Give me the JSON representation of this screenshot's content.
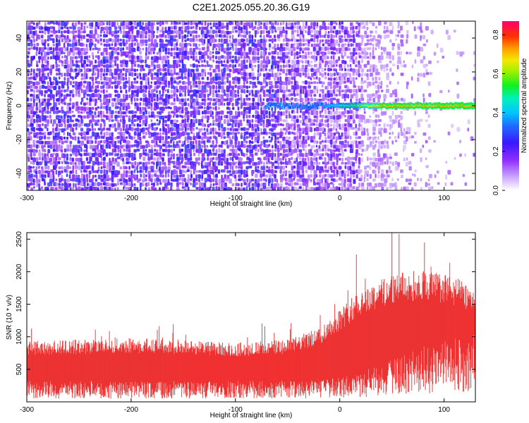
{
  "title": "C2E1.2025.055.20.36.G19",
  "chart_data": [
    {
      "type": "heatmap",
      "xlabel": "Height of straight line (km)",
      "ylabel": "Frequency (Hz)",
      "xlim": [
        -300,
        130
      ],
      "ylim": [
        -50,
        50
      ],
      "xticks": [
        -300,
        -200,
        -100,
        0,
        100
      ],
      "yticks": [
        -40,
        -20,
        0,
        20,
        40
      ],
      "colorbar": {
        "label": "Normalized spectral amplitude",
        "range": [
          0,
          0.87
        ],
        "ticks": [
          0.0,
          0.2,
          0.4,
          0.6,
          0.8
        ],
        "colormap": "purple-blue-cyan-green-yellow-red"
      },
      "features": {
        "noise_dense_until_km": -10,
        "noise_fades_out_by_km": 90,
        "signal_line_frequency_hz": 0,
        "signal_line_start_km": -72,
        "signal_line_peak_amplitude": 0.85
      }
    },
    {
      "type": "line",
      "xlabel": "Height of straight line (km)",
      "ylabel": "SNR (10 * v/v)",
      "xlim": [
        -300,
        130
      ],
      "ylim": [
        0,
        2600
      ],
      "xticks": [
        -300,
        -200,
        -100,
        0,
        100
      ],
      "yticks": [
        500,
        1000,
        1500,
        2000,
        2500
      ],
      "grid": false,
      "series": [
        {
          "color": "#ee2e2e",
          "envelope_x": [
            -300,
            -250,
            -200,
            -150,
            -100,
            -50,
            -20,
            0,
            20,
            50,
            80,
            100,
            130
          ],
          "upper_mean": [
            780,
            800,
            820,
            800,
            760,
            800,
            950,
            1200,
            1450,
            1650,
            1700,
            1650,
            1500
          ],
          "lower_mean": [
            320,
            320,
            320,
            320,
            320,
            330,
            340,
            380,
            460,
            650,
            850,
            950,
            1050
          ],
          "max_peak": {
            "x": 50,
            "y": 2600
          }
        }
      ]
    }
  ]
}
